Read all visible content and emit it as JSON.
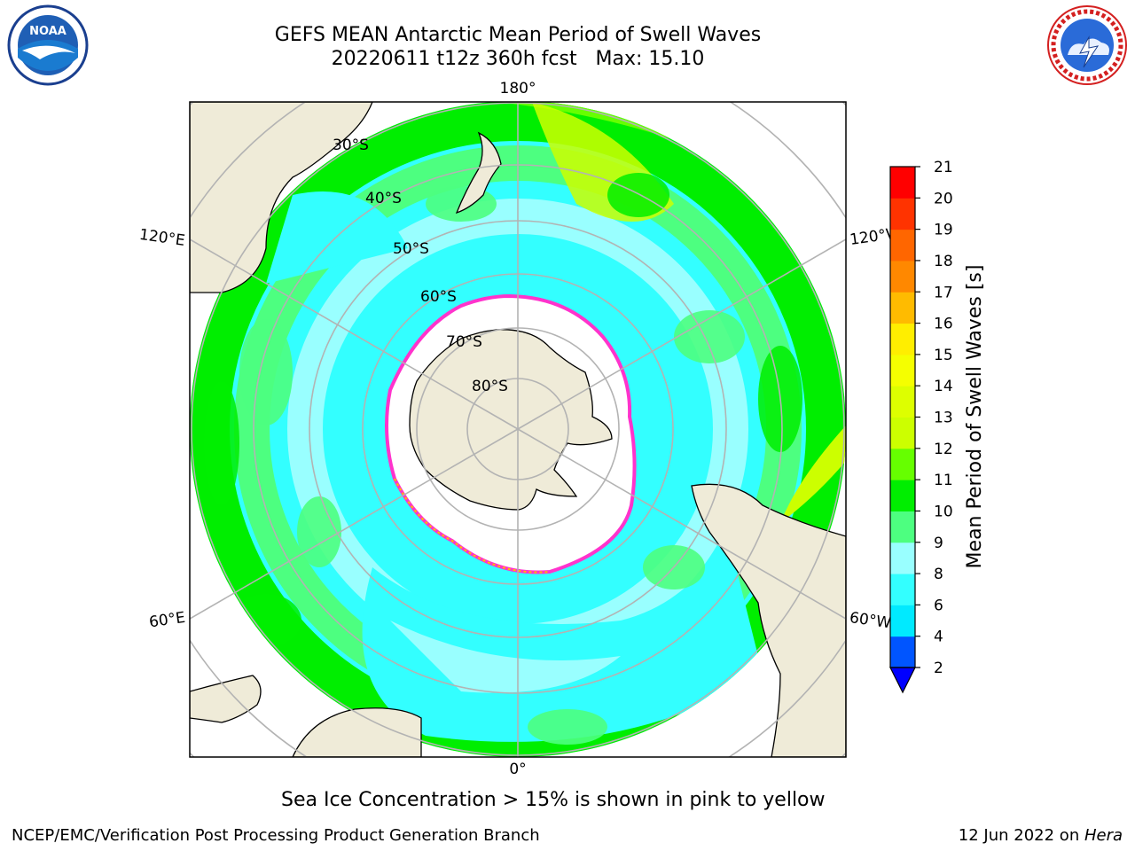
{
  "title": {
    "line1": "GEFS MEAN Antarctic Mean Period of Swell Waves",
    "line2": "20220611 t12z 360h fcst   Max: 15.10"
  },
  "map": {
    "projection": "south-polar-stereographic",
    "longitude_labels": {
      "top": "180°",
      "left_upper": "120°E",
      "right_upper": "120°W",
      "left_lower": "60°E",
      "right_lower": "60°W",
      "bottom": "0°"
    },
    "latitude_labels": [
      "30°S",
      "40°S",
      "50°S",
      "60°S",
      "70°S",
      "80°S"
    ],
    "colors": {
      "land": "#efebd8",
      "sea_ice": "#ffffff",
      "ice_edge": "#ff33cc",
      "grid": "#b3b3b3"
    }
  },
  "colorbar": {
    "label": "Mean Period of Swell Waves [s]",
    "ticks": [
      "2",
      "4",
      "6",
      "8",
      "9",
      "10",
      "11",
      "12",
      "13",
      "14",
      "15",
      "16",
      "17",
      "18",
      "19",
      "20",
      "21"
    ],
    "colors": [
      "#0055ff",
      "#00eaff",
      "#33ffff",
      "#99ffff",
      "#4dff80",
      "#00ee00",
      "#66ff00",
      "#ccff00",
      "#ddff00",
      "#f5ff00",
      "#ffee00",
      "#ffbb00",
      "#ff8800",
      "#ff6600",
      "#ff3300",
      "#ff0000"
    ],
    "under_color": "#0000ff"
  },
  "footnote": "Sea Ice Concentration > 15% is shown in pink to yellow",
  "credit": "NCEP/EMC/Verification Post Processing Product Generation Branch",
  "date_text": "12 Jun 2022 on ",
  "date_host": "Hera",
  "logos": {
    "left": {
      "name": "noaa-logo",
      "text": "NOAA"
    },
    "right": {
      "name": "nws-logo",
      "text": "NATIONAL WEATHER SERVICE"
    }
  }
}
